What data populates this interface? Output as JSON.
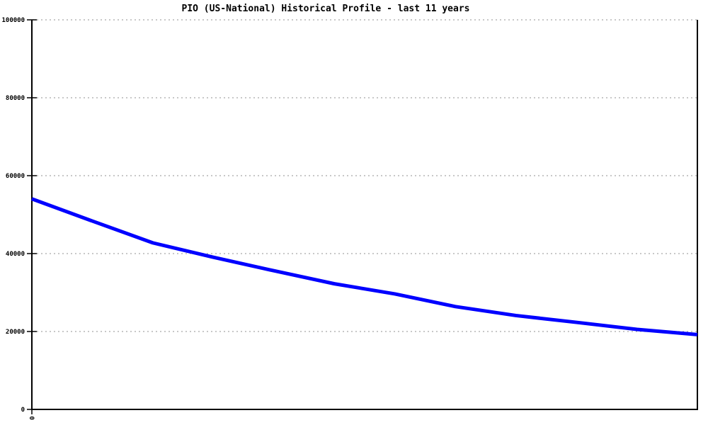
{
  "chart_data": {
    "type": "line",
    "title": "PIO (US-National) Historical Profile - last 11 years",
    "xlabel": "",
    "ylabel": "",
    "x": [
      0,
      1,
      2,
      3,
      4,
      5,
      6,
      7,
      8,
      9,
      10,
      11
    ],
    "series": [
      {
        "values": [
          54050,
          48350,
          42750,
          39050,
          35600,
          32250,
          29650,
          26400,
          24100,
          22350,
          20550,
          19200
        ],
        "color": "#0000ff"
      }
    ],
    "xlim": [
      0,
      11
    ],
    "ylim": [
      0,
      100000
    ],
    "yticks": [
      0,
      20000,
      40000,
      60000,
      80000,
      100000
    ],
    "ytick_labels": [
      "0",
      "20000",
      "40000",
      "60000",
      "80000",
      "100000"
    ],
    "xticks": [
      {
        "value": 0,
        "label": "0"
      }
    ],
    "grid": "horizontal-dotted",
    "legend": "none",
    "colors": {
      "line": "#0000ff",
      "grid": "#a6a6a6",
      "axis": "#000000",
      "background": "#ffffff",
      "title_text": "#000000"
    }
  }
}
